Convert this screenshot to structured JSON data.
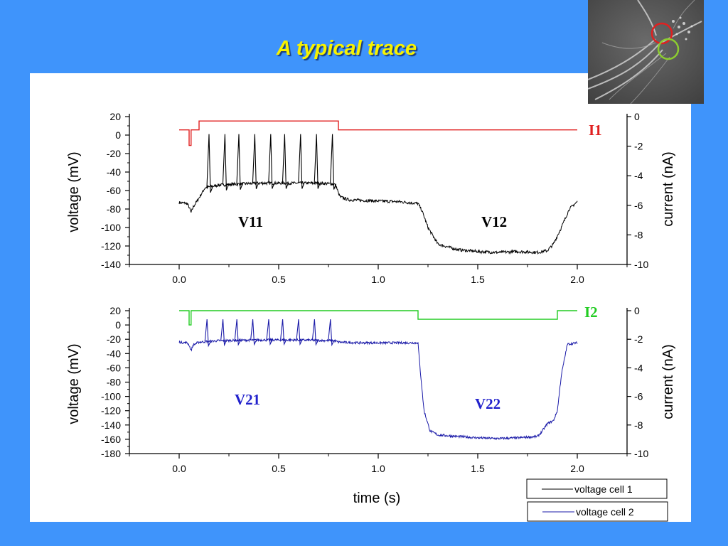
{
  "slide": {
    "title": "A typical trace"
  },
  "thumbnail": {
    "name": "neuron micrograph",
    "ring_colors": [
      "#e02020",
      "#8ccc30"
    ]
  },
  "colors": {
    "background": "#3f94fb",
    "title": "#f7f200",
    "v1": "#000000",
    "i1": "#e02020",
    "v2": "#1a1aa8",
    "i2": "#22cc22"
  },
  "chart_data": [
    {
      "type": "line",
      "panel": "top",
      "ylabel": "voltage (mV)",
      "y2label": "current (nA)",
      "ylim": [
        -140,
        20
      ],
      "y_ticks": [
        "20",
        "0",
        "-20",
        "-40",
        "-60",
        "-80",
        "-100",
        "-120",
        "-140"
      ],
      "y2lim": [
        -10,
        0
      ],
      "y2_ticks": [
        "0",
        "-2",
        "-4",
        "-6",
        "-8",
        "-10"
      ],
      "xlim": [
        -0.25,
        2.25
      ],
      "x_ticks": [
        "0.0",
        "0.5",
        "1.0",
        "1.5",
        "2.0"
      ],
      "annotations": [
        "I1",
        "V11",
        "V12"
      ],
      "series": [
        {
          "name": "I1",
          "axis": "right",
          "x": [
            0.0,
            0.05,
            0.05,
            0.06,
            0.06,
            0.1,
            0.1,
            0.8,
            0.8,
            2.0
          ],
          "y": [
            -0.9,
            -0.9,
            -1.95,
            -1.95,
            -0.9,
            -0.9,
            -0.3,
            -0.3,
            -0.9,
            -0.9
          ]
        },
        {
          "name": "voltage cell 1",
          "axis": "left",
          "x": [
            0.0,
            0.04,
            0.05,
            0.06,
            0.07,
            0.1,
            0.13,
            0.2,
            0.3,
            0.4,
            0.5,
            0.6,
            0.7,
            0.78,
            0.79,
            0.8,
            0.81,
            0.85,
            0.95,
            1.1,
            1.2,
            1.22,
            1.25,
            1.3,
            1.4,
            1.5,
            1.6,
            1.7,
            1.8,
            1.85,
            1.88,
            1.92,
            1.96,
            2.0
          ],
          "y": [
            -73,
            -74,
            -78,
            -84,
            -78,
            -68,
            -57,
            -54,
            -53,
            -52,
            -52,
            -52,
            -52,
            -53,
            -56,
            -63,
            -67,
            -70,
            -71,
            -72,
            -74,
            -82,
            -100,
            -118,
            -124,
            -126,
            -127,
            -126,
            -127,
            -125,
            -118,
            -100,
            -80,
            -72
          ],
          "spikes_x": [
            0.15,
            0.23,
            0.3,
            0.38,
            0.46,
            0.53,
            0.61,
            0.69,
            0.77
          ],
          "spike_peak": 1
        }
      ]
    },
    {
      "type": "line",
      "panel": "bottom",
      "xlabel": "time (s)",
      "ylabel": "voltage (mV)",
      "y2label": "current (nA)",
      "ylim": [
        -180,
        20
      ],
      "y_ticks": [
        "20",
        "0",
        "-20",
        "-40",
        "-60",
        "-80",
        "-100",
        "-120",
        "-140",
        "-160",
        "-180"
      ],
      "y2lim": [
        -10,
        0
      ],
      "y2_ticks": [
        "0",
        "-2",
        "-4",
        "-6",
        "-8",
        "-10"
      ],
      "xlim": [
        -0.25,
        2.25
      ],
      "x_ticks": [
        "0.0",
        "0.5",
        "1.0",
        "1.5",
        "2.0"
      ],
      "annotations": [
        "I2",
        "V21",
        "V22"
      ],
      "series": [
        {
          "name": "I2",
          "axis": "right",
          "x": [
            0.0,
            0.05,
            0.05,
            0.06,
            0.06,
            1.2,
            1.2,
            1.9,
            1.9,
            2.0
          ],
          "y": [
            0.0,
            0.0,
            -1.0,
            -1.0,
            0.0,
            0.0,
            -0.6,
            -0.6,
            0.0,
            0.0
          ]
        },
        {
          "name": "voltage cell 2",
          "axis": "left",
          "x": [
            0.0,
            0.04,
            0.05,
            0.06,
            0.07,
            0.1,
            0.2,
            0.4,
            0.6,
            0.78,
            0.8,
            0.9,
            1.0,
            1.1,
            1.19,
            1.2,
            1.21,
            1.23,
            1.26,
            1.3,
            1.4,
            1.5,
            1.6,
            1.7,
            1.8,
            1.82,
            1.85,
            1.88,
            1.9,
            1.92,
            1.95,
            2.0
          ],
          "y": [
            -24,
            -25,
            -28,
            -36,
            -28,
            -24,
            -22,
            -21,
            -21,
            -22,
            -24,
            -25,
            -25,
            -25,
            -25,
            -25,
            -60,
            -120,
            -148,
            -154,
            -156,
            -158,
            -159,
            -158,
            -156,
            -150,
            -138,
            -134,
            -120,
            -70,
            -27,
            -25
          ],
          "spikes_x": [
            0.14,
            0.22,
            0.29,
            0.37,
            0.45,
            0.52,
            0.6,
            0.68,
            0.76
          ],
          "spike_peak": 8
        }
      ]
    }
  ],
  "legend": [
    "voltage cell 1",
    "voltage cell 2"
  ]
}
